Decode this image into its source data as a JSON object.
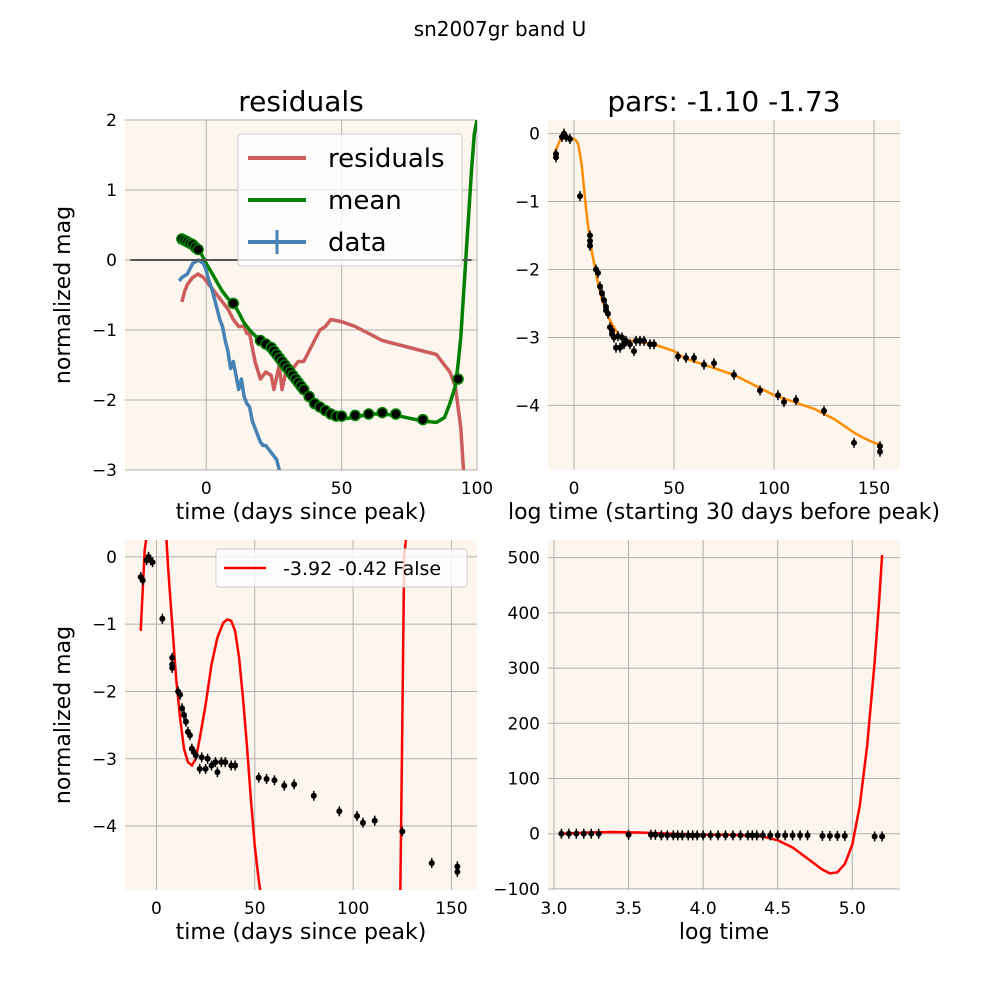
{
  "figure": {
    "suptitle": "sn2007gr band U"
  },
  "colors": {
    "plot_bg": "#fdf6ee",
    "grid": "#b0b0b0",
    "residuals": "#cd5c5c",
    "mean": "#008000",
    "data": "#4682b4",
    "points": "#000000",
    "fit": "#ff8c00",
    "poly": "#ff0000",
    "zero_line": "#555555"
  },
  "chart_data": [
    {
      "id": "residuals",
      "type": "line",
      "title": "residuals",
      "xlabel": "time (days since peak)",
      "ylabel": "normalized mag",
      "xlim": [
        -30,
        100
      ],
      "ylim": [
        -3,
        2
      ],
      "xticks": [
        0,
        50,
        100
      ],
      "yticks": [
        -3,
        -2,
        -1,
        0,
        1,
        2
      ],
      "ytick_labels": [
        "−3",
        "−2",
        "−1",
        "0",
        "1",
        "2"
      ],
      "legend": {
        "position": "top-right",
        "entries": [
          "residuals",
          "mean",
          "data"
        ]
      },
      "series": [
        {
          "name": "residuals",
          "x": [
            -9,
            -8,
            -7,
            -5,
            -3,
            -1,
            0,
            2,
            4,
            6,
            8,
            10,
            12,
            14,
            15,
            16,
            18,
            20,
            22,
            24,
            25,
            27,
            28,
            30,
            32,
            34,
            36,
            38,
            40,
            42,
            44,
            46,
            50,
            55,
            60,
            65,
            70,
            75,
            80,
            85,
            90,
            92,
            94,
            95
          ],
          "y": [
            -0.6,
            -0.45,
            -0.35,
            -0.25,
            -0.2,
            -0.25,
            -0.3,
            -0.4,
            -0.5,
            -0.6,
            -0.7,
            -0.85,
            -0.95,
            -0.95,
            -1.05,
            -1.05,
            -1.45,
            -1.7,
            -1.6,
            -1.65,
            -1.85,
            -1.5,
            -1.85,
            -1.5,
            -1.55,
            -1.45,
            -1.45,
            -1.3,
            -1.15,
            -1.0,
            -0.95,
            -0.85,
            -0.88,
            -0.95,
            -1.05,
            -1.15,
            -1.2,
            -1.25,
            -1.3,
            -1.35,
            -1.6,
            -1.8,
            -2.4,
            -3.0
          ]
        },
        {
          "name": "mean",
          "x": [
            -10,
            -8,
            -6,
            -4,
            -2,
            0,
            2,
            4,
            6,
            8,
            10,
            12,
            14,
            16,
            18,
            20,
            22,
            24,
            26,
            28,
            30,
            32,
            34,
            36,
            38,
            40,
            42,
            44,
            46,
            48,
            50,
            55,
            60,
            65,
            70,
            75,
            80,
            85,
            88,
            90,
            92,
            93,
            94,
            95,
            96,
            97,
            98,
            99,
            100
          ],
          "y": [
            0.3,
            0.28,
            0.24,
            0.18,
            0.1,
            -0.05,
            -0.18,
            -0.32,
            -0.45,
            -0.55,
            -0.62,
            -0.75,
            -0.9,
            -1.0,
            -1.08,
            -1.15,
            -1.25,
            -1.33,
            -1.4,
            -1.5,
            -1.6,
            -1.7,
            -1.8,
            -1.88,
            -1.98,
            -2.08,
            -2.15,
            -2.2,
            -2.25,
            -2.27,
            -2.27,
            -2.25,
            -2.2,
            -2.2,
            -2.22,
            -2.26,
            -2.3,
            -2.32,
            -2.25,
            -2.05,
            -1.8,
            -1.5,
            -1.1,
            -0.5,
            0.1,
            0.7,
            1.3,
            1.8,
            2.0
          ]
        },
        {
          "name": "data",
          "x": [
            -10,
            -9,
            -7,
            -5,
            -3,
            -1,
            0,
            1,
            2,
            3,
            4,
            5,
            6,
            7,
            8,
            9,
            10,
            11,
            12,
            13,
            14,
            15,
            16,
            17,
            18,
            19,
            20,
            21,
            22,
            23,
            24,
            25,
            26,
            27,
            28
          ],
          "y": [
            -0.3,
            -0.25,
            -0.2,
            -0.05,
            0.0,
            -0.05,
            -0.15,
            -0.3,
            -0.4,
            -0.55,
            -0.7,
            -0.85,
            -0.95,
            -1.15,
            -1.3,
            -1.55,
            -1.45,
            -1.65,
            -1.85,
            -1.7,
            -1.95,
            -2.05,
            -2.1,
            -2.3,
            -2.4,
            -2.5,
            -2.6,
            -2.65,
            -2.65,
            -2.7,
            -2.75,
            -2.8,
            -2.85,
            -3.0,
            -3.2
          ]
        },
        {
          "name": "",
          "role": "points",
          "x": [
            -9,
            -8,
            -7,
            -6,
            -5,
            -4,
            -3,
            10,
            20,
            22,
            24,
            25,
            26,
            27,
            28,
            29,
            30,
            31,
            32,
            33,
            34,
            35,
            36,
            38,
            40,
            42,
            44,
            46,
            48,
            50,
            55,
            60,
            65,
            70,
            80,
            93
          ],
          "y": [
            0.3,
            0.28,
            0.26,
            0.24,
            0.22,
            0.18,
            0.15,
            -0.62,
            -1.15,
            -1.2,
            -1.25,
            -1.3,
            -1.35,
            -1.4,
            -1.45,
            -1.5,
            -1.55,
            -1.6,
            -1.65,
            -1.7,
            -1.75,
            -1.8,
            -1.85,
            -1.95,
            -2.05,
            -2.1,
            -2.15,
            -2.2,
            -2.23,
            -2.23,
            -2.22,
            -2.2,
            -2.18,
            -2.2,
            -2.28,
            -1.7
          ]
        },
        {
          "name": "",
          "role": "zero",
          "x": [
            -28,
            98
          ],
          "y": [
            0,
            0
          ]
        }
      ]
    },
    {
      "id": "pars",
      "type": "line",
      "title": "pars: -1.10 -1.73",
      "xlabel": "log time (starting 30 days before peak)",
      "ylabel": "",
      "xlim": [
        -13,
        163
      ],
      "ylim": [
        -4.95,
        0.2
      ],
      "xticks": [
        0,
        50,
        100,
        150
      ],
      "yticks": [
        -4,
        -3,
        -2,
        -1,
        0
      ],
      "ytick_labels": [
        "−4",
        "−3",
        "−2",
        "−1",
        "0"
      ],
      "series": [
        {
          "name": "",
          "role": "fit",
          "x": [
            -10,
            -7,
            -4,
            -2,
            0,
            1,
            2,
            3,
            4,
            5,
            6,
            7,
            8,
            9,
            10,
            12,
            14,
            16,
            18,
            20,
            22,
            24,
            27,
            30,
            35,
            40,
            45,
            50,
            55,
            60,
            65,
            70,
            80,
            90,
            100,
            110,
            120,
            130,
            140,
            145,
            150,
            154
          ],
          "y": [
            -0.3,
            -0.1,
            -0.04,
            -0.08,
            -0.08,
            -0.1,
            -0.15,
            -0.3,
            -0.5,
            -0.8,
            -1.1,
            -1.35,
            -1.55,
            -1.75,
            -1.9,
            -2.2,
            -2.45,
            -2.6,
            -2.75,
            -2.85,
            -2.95,
            -3.0,
            -3.05,
            -3.05,
            -3.08,
            -3.1,
            -3.15,
            -3.2,
            -3.3,
            -3.35,
            -3.4,
            -3.45,
            -3.55,
            -3.7,
            -3.85,
            -3.95,
            -4.05,
            -4.2,
            -4.4,
            -4.48,
            -4.55,
            -4.58
          ]
        },
        {
          "name": "",
          "role": "points",
          "x": [
            -9,
            -9,
            -6,
            -5,
            -4,
            -2,
            3,
            8,
            8,
            8,
            11,
            12,
            13,
            14,
            15,
            16,
            16,
            17,
            18,
            19,
            19,
            20,
            21,
            22,
            23,
            24,
            25,
            26,
            28,
            30,
            31,
            33,
            35,
            38,
            40,
            52,
            56,
            60,
            65,
            70,
            80,
            93,
            102,
            105,
            111,
            125,
            140,
            153,
            153
          ],
          "y": [
            -0.3,
            -0.35,
            -0.05,
            0.0,
            -0.05,
            -0.08,
            -0.92,
            -1.5,
            -1.58,
            -1.65,
            -2.0,
            -2.05,
            -2.25,
            -2.35,
            -2.45,
            -2.55,
            -2.6,
            -2.65,
            -2.85,
            -2.9,
            -2.95,
            -3.0,
            -3.15,
            -2.98,
            -3.15,
            -3.0,
            -3.1,
            -3.05,
            -3.1,
            -3.2,
            -3.05,
            -3.05,
            -3.05,
            -3.1,
            -3.1,
            -3.28,
            -3.3,
            -3.3,
            -3.4,
            -3.38,
            -3.55,
            -3.78,
            -3.85,
            -3.95,
            -3.92,
            -4.08,
            -4.55,
            -4.6,
            -4.68
          ]
        }
      ]
    },
    {
      "id": "poly",
      "type": "line",
      "xlabel": "time (days since peak)",
      "ylabel": "normalized mag",
      "xlim": [
        -16,
        163
      ],
      "ylim": [
        -4.95,
        0.25
      ],
      "xticks": [
        0,
        50,
        100,
        150
      ],
      "yticks": [
        -4,
        -3,
        -2,
        -1,
        0
      ],
      "ytick_labels": [
        "−4",
        "−3",
        "−2",
        "−1",
        "0"
      ],
      "legend": {
        "position": "top-right",
        "entries": [
          "-3.92 -0.42 False"
        ]
      },
      "series": [
        {
          "name": "-3.92 -0.42 False",
          "role": "poly",
          "segments": [
            {
              "x": [
                -8,
                -7,
                -6,
                -5
              ],
              "y": [
                -1.1,
                -0.5,
                0.1,
                0.3
              ]
            },
            {
              "x": [
                5,
                6,
                8,
                10,
                12,
                14,
                16,
                18,
                20,
                22,
                25,
                28,
                31,
                34,
                36,
                38,
                40,
                42,
                44,
                46,
                48,
                50,
                52,
                53
              ],
              "y": [
                0.3,
                -0.2,
                -1.0,
                -1.8,
                -2.4,
                -2.85,
                -3.05,
                -3.1,
                -3.0,
                -2.7,
                -2.2,
                -1.6,
                -1.2,
                -0.98,
                -0.93,
                -0.95,
                -1.1,
                -1.5,
                -2.1,
                -2.8,
                -3.6,
                -4.3,
                -4.8,
                -5.0
              ]
            },
            {
              "x": [
                124,
                125,
                126,
                127
              ],
              "y": [
                -5.0,
                -2.5,
                0.0,
                0.3
              ]
            }
          ]
        },
        {
          "name": "",
          "role": "points",
          "x": [
            -8,
            -7,
            -5,
            -4,
            -3,
            -2,
            3,
            8,
            8,
            8,
            11,
            12,
            13,
            14,
            15,
            16,
            17,
            18,
            19,
            20,
            22,
            23,
            25,
            26,
            28,
            30,
            31,
            33,
            35,
            38,
            40,
            52,
            56,
            60,
            65,
            70,
            80,
            93,
            102,
            105,
            111,
            125,
            140,
            153,
            153
          ],
          "y": [
            -0.3,
            -0.35,
            -0.05,
            0.0,
            -0.05,
            -0.08,
            -0.92,
            -1.5,
            -1.6,
            -1.65,
            -2.0,
            -2.05,
            -2.25,
            -2.35,
            -2.45,
            -2.6,
            -2.65,
            -2.85,
            -2.9,
            -2.95,
            -3.15,
            -2.98,
            -3.15,
            -3.0,
            -3.1,
            -3.05,
            -3.2,
            -3.05,
            -3.05,
            -3.1,
            -3.1,
            -3.28,
            -3.3,
            -3.32,
            -3.4,
            -3.38,
            -3.55,
            -3.78,
            -3.85,
            -3.95,
            -3.92,
            -4.08,
            -4.55,
            -4.6,
            -4.68
          ]
        }
      ]
    },
    {
      "id": "logtime",
      "type": "line",
      "xlabel": "log time",
      "ylabel": "",
      "xlim": [
        2.96,
        5.32
      ],
      "ylim": [
        -102,
        532
      ],
      "xticks": [
        3.0,
        3.5,
        4.0,
        4.5,
        5.0
      ],
      "xtick_labels": [
        "3.0",
        "3.5",
        "4.0",
        "4.5",
        "5.0"
      ],
      "yticks": [
        -100,
        0,
        100,
        200,
        300,
        400,
        500
      ],
      "ytick_labels": [
        "−100",
        "0",
        "100",
        "200",
        "300",
        "400",
        "500"
      ],
      "series": [
        {
          "name": "",
          "role": "poly",
          "x": [
            3.05,
            3.2,
            3.4,
            3.6,
            3.8,
            4.0,
            4.2,
            4.4,
            4.5,
            4.6,
            4.7,
            4.75,
            4.8,
            4.85,
            4.9,
            4.95,
            5.0,
            5.05,
            5.1,
            5.15,
            5.18,
            5.2
          ],
          "y": [
            0,
            2,
            3,
            2,
            0,
            -2,
            -2,
            -5,
            -12,
            -25,
            -45,
            -55,
            -65,
            -72,
            -70,
            -55,
            -20,
            50,
            160,
            310,
            420,
            505
          ]
        },
        {
          "name": "",
          "role": "points",
          "x": [
            3.05,
            3.1,
            3.15,
            3.2,
            3.25,
            3.3,
            3.5,
            3.65,
            3.68,
            3.72,
            3.76,
            3.8,
            3.83,
            3.86,
            3.9,
            3.93,
            3.96,
            4.0,
            4.05,
            4.1,
            4.15,
            4.2,
            4.25,
            4.3,
            4.33,
            4.36,
            4.4,
            4.45,
            4.5,
            4.55,
            4.6,
            4.65,
            4.7,
            4.8,
            4.85,
            4.9,
            4.95,
            5.15,
            5.2
          ],
          "y": [
            0,
            0,
            0,
            0,
            0,
            0,
            -2,
            -2,
            -2,
            -3,
            -3,
            -3,
            -3,
            -3,
            -3,
            -3,
            -3,
            -3,
            -3,
            -3,
            -3,
            -3,
            -3,
            -3,
            -3,
            -3,
            -3,
            -3,
            -3,
            -3,
            -3,
            -3,
            -3,
            -4,
            -4,
            -4,
            -4,
            -5,
            -5
          ]
        }
      ]
    }
  ]
}
